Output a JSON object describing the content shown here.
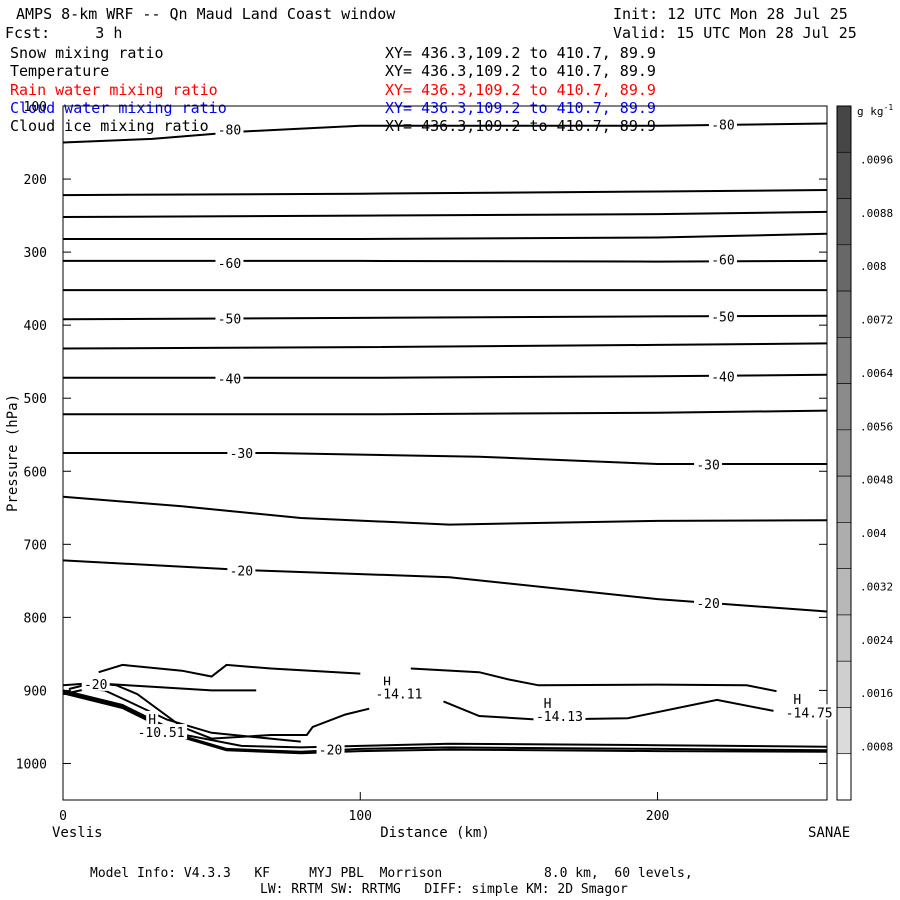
{
  "header": {
    "title": "AMPS 8-km WRF -- Qn Maud Land Coast window",
    "init": "Init: 12 UTC Mon 28 Jul 25",
    "fcst": "Fcst:     3 h",
    "valid": "Valid: 15 UTC Mon 28 Jul 25"
  },
  "fields": [
    {
      "name": "Snow mixing ratio",
      "xy": "XY= 436.3,109.2 to 410.7, 89.9",
      "color": "#000000"
    },
    {
      "name": "Temperature",
      "xy": "XY= 436.3,109.2 to 410.7, 89.9",
      "color": "#000000"
    },
    {
      "name": "Rain water mixing ratio",
      "xy": "XY= 436.3,109.2 to 410.7, 89.9",
      "color": "#ff0000"
    },
    {
      "name": "Cloud water mixing ratio",
      "xy": "XY= 436.3,109.2 to 410.7, 89.9",
      "color": "#0000ff"
    },
    {
      "name": "Cloud ice mixing ratio",
      "xy": "XY= 436.3,109.2 to 410.7, 89.9",
      "color": "#000000"
    }
  ],
  "footer": {
    "line1": "Model Info: V4.3.3   KF     MYJ PBL  Morrison             8.0 km,  60 levels,",
    "line2": "LW: RRTM SW: RRTMG   DIFF: simple KM: 2D Smagor"
  },
  "chart_data": {
    "type": "contour cross-section",
    "xlabel": "Distance (km)",
    "ylabel": "Pressure (hPa)",
    "x_ticks": [
      0,
      100,
      200
    ],
    "y_ticks": [
      100,
      200,
      300,
      400,
      500,
      600,
      700,
      800,
      900,
      1000
    ],
    "xlim": [
      0,
      257
    ],
    "ylim": [
      1050,
      100
    ],
    "left_endpoint": "Veslis",
    "right_endpoint": "SANAE",
    "colorbar": {
      "unit_label": "g kg",
      "unit_exp": "-1",
      "ticks": [
        ".0096",
        ".0088",
        ".008",
        ".0072",
        ".0064",
        ".0056",
        ".0048",
        ".004",
        ".0032",
        ".0024",
        ".0016",
        ".0008"
      ]
    },
    "isotherms": [
      {
        "label": "-80",
        "points": [
          [
            0,
            150
          ],
          [
            30,
            145
          ],
          [
            60,
            135
          ],
          [
            100,
            127
          ],
          [
            150,
            127
          ],
          [
            200,
            127
          ],
          [
            257,
            124
          ]
        ]
      },
      {
        "label": "",
        "points": [
          [
            0,
            222
          ],
          [
            100,
            220
          ],
          [
            200,
            217
          ],
          [
            257,
            215
          ]
        ]
      },
      {
        "label": "",
        "points": [
          [
            0,
            252
          ],
          [
            100,
            250
          ],
          [
            200,
            248
          ],
          [
            257,
            245
          ]
        ]
      },
      {
        "label": "",
        "points": [
          [
            0,
            282
          ],
          [
            100,
            282
          ],
          [
            200,
            280
          ],
          [
            257,
            275
          ]
        ]
      },
      {
        "label": "-60",
        "points": [
          [
            0,
            312
          ],
          [
            100,
            312
          ],
          [
            200,
            313
          ],
          [
            257,
            312
          ]
        ]
      },
      {
        "label": "",
        "points": [
          [
            0,
            352
          ],
          [
            100,
            352
          ],
          [
            200,
            352
          ],
          [
            257,
            352
          ]
        ]
      },
      {
        "label": "-50",
        "points": [
          [
            0,
            392
          ],
          [
            100,
            390
          ],
          [
            200,
            388
          ],
          [
            257,
            387
          ]
        ]
      },
      {
        "label": "",
        "points": [
          [
            0,
            432
          ],
          [
            100,
            430
          ],
          [
            200,
            427
          ],
          [
            257,
            425
          ]
        ]
      },
      {
        "label": "-40",
        "points": [
          [
            0,
            472
          ],
          [
            100,
            472
          ],
          [
            200,
            470
          ],
          [
            257,
            468
          ]
        ]
      },
      {
        "label": "",
        "points": [
          [
            0,
            522
          ],
          [
            100,
            522
          ],
          [
            200,
            520
          ],
          [
            257,
            517
          ]
        ]
      },
      {
        "label": "-30",
        "points": [
          [
            0,
            575
          ],
          [
            70,
            575
          ],
          [
            140,
            580
          ],
          [
            200,
            590
          ],
          [
            257,
            590
          ]
        ]
      },
      {
        "label": "",
        "points": [
          [
            0,
            635
          ],
          [
            40,
            648
          ],
          [
            80,
            664
          ],
          [
            130,
            673
          ],
          [
            200,
            668
          ],
          [
            257,
            667
          ]
        ]
      },
      {
        "label": "-20",
        "points": [
          [
            0,
            722
          ],
          [
            60,
            735
          ],
          [
            130,
            745
          ],
          [
            200,
            775
          ],
          [
            257,
            792
          ]
        ]
      }
    ],
    "labels": [
      {
        "text": "-80",
        "x": 56,
        "p": 132
      },
      {
        "text": "-80",
        "x": 222,
        "p": 125
      },
      {
        "text": "-60",
        "x": 56,
        "p": 315
      },
      {
        "text": "-60",
        "x": 222,
        "p": 310
      },
      {
        "text": "-50",
        "x": 56,
        "p": 391
      },
      {
        "text": "-50",
        "x": 222,
        "p": 388
      },
      {
        "text": "-40",
        "x": 56,
        "p": 473
      },
      {
        "text": "-40",
        "x": 222,
        "p": 470
      },
      {
        "text": "-30",
        "x": 60,
        "p": 575
      },
      {
        "text": "-30",
        "x": 217,
        "p": 591
      },
      {
        "text": "-20",
        "x": 60,
        "p": 736
      },
      {
        "text": "-20",
        "x": 217,
        "p": 780
      },
      {
        "text": "-20",
        "x": 11,
        "p": 891
      },
      {
        "text": "-20",
        "x": 90,
        "p": 981
      },
      {
        "text": "H",
        "x": 30,
        "p": 939
      },
      {
        "text": "-10.51",
        "x": 33,
        "p": 957
      },
      {
        "text": "H",
        "x": 109,
        "p": 888
      },
      {
        "text": "-14.11",
        "x": 113,
        "p": 904
      },
      {
        "text": "H",
        "x": 163,
        "p": 917
      },
      {
        "text": "-14.13",
        "x": 167,
        "p": 935
      },
      {
        "text": "H",
        "x": 247,
        "p": 912
      },
      {
        "text": "-14.75",
        "x": 251,
        "p": 930
      }
    ],
    "inner_contours": [
      {
        "points": [
          [
            12,
            875
          ],
          [
            20,
            865
          ],
          [
            40,
            873
          ],
          [
            50,
            881
          ],
          [
            55,
            865
          ],
          [
            70,
            870
          ],
          [
            100,
            877
          ]
        ]
      },
      {
        "points": [
          [
            117,
            870
          ],
          [
            140,
            875
          ],
          [
            150,
            885
          ],
          [
            160,
            893
          ],
          [
            200,
            892
          ],
          [
            230,
            893
          ],
          [
            240,
            901
          ]
        ]
      },
      {
        "points": [
          [
            2,
            898
          ],
          [
            10,
            890
          ],
          [
            30,
            895
          ],
          [
            50,
            900
          ],
          [
            65,
            900
          ]
        ]
      },
      {
        "points": [
          [
            0,
            905
          ],
          [
            8,
            898
          ],
          [
            14,
            900
          ],
          [
            22,
            915
          ],
          [
            35,
            940
          ],
          [
            50,
            958
          ],
          [
            80,
            970
          ]
        ]
      },
      {
        "points": [
          [
            0,
            893
          ],
          [
            10,
            890
          ],
          [
            18,
            893
          ],
          [
            25,
            905
          ],
          [
            40,
            950
          ],
          [
            50,
            966
          ],
          [
            70,
            961
          ],
          [
            82,
            961
          ],
          [
            84,
            950
          ],
          [
            95,
            933
          ],
          [
            103,
            925
          ]
        ]
      },
      {
        "points": [
          [
            128,
            915
          ],
          [
            140,
            935
          ],
          [
            160,
            940
          ],
          [
            190,
            938
          ],
          [
            220,
            913
          ],
          [
            239,
            928
          ]
        ]
      }
    ],
    "ground_lines": [
      {
        "points": [
          [
            0,
            900
          ],
          [
            20,
            920
          ],
          [
            40,
            960
          ],
          [
            60,
            976
          ],
          [
            80,
            978
          ],
          [
            100,
            976
          ],
          [
            130,
            973
          ],
          [
            200,
            975
          ],
          [
            257,
            977
          ]
        ]
      },
      {
        "points": [
          [
            0,
            902
          ],
          [
            20,
            922
          ],
          [
            40,
            962
          ],
          [
            55,
            980
          ],
          [
            80,
            984
          ],
          [
            100,
            980
          ],
          [
            130,
            978
          ],
          [
            200,
            980
          ],
          [
            257,
            982
          ]
        ]
      },
      {
        "points": [
          [
            0,
            904
          ],
          [
            20,
            924
          ],
          [
            40,
            964
          ],
          [
            55,
            982
          ],
          [
            80,
            986
          ],
          [
            100,
            983
          ],
          [
            130,
            981
          ],
          [
            200,
            983
          ],
          [
            257,
            984
          ]
        ]
      }
    ]
  }
}
